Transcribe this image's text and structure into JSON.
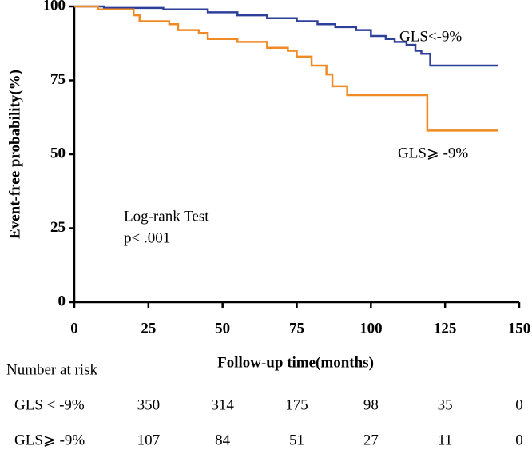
{
  "chart_data": {
    "type": "line",
    "drawstyle": "steps-post",
    "xlabel": "Follow-up time(months)",
    "ylabel": "Event-free probability(%)",
    "xlim": [
      0,
      150
    ],
    "xticks": [
      0,
      25,
      50,
      75,
      100,
      125,
      150
    ],
    "ylim": [
      0,
      100
    ],
    "yticks": [
      0,
      25,
      50,
      75,
      100
    ],
    "series": [
      {
        "name": "GLS<-9%",
        "color": "#2e3f9a",
        "x": [
          0,
          10,
          30,
          45,
          55,
          65,
          75,
          82,
          88,
          95,
          100,
          105,
          108,
          112,
          115,
          117,
          120,
          143
        ],
        "values": [
          100,
          99.5,
          99,
          98,
          97,
          96,
          95,
          94,
          93,
          92,
          90,
          89,
          88,
          87,
          85,
          84,
          80,
          80
        ]
      },
      {
        "name": "GLS⩾ -9%",
        "color": "#f08a24",
        "x": [
          0,
          8,
          20,
          22,
          32,
          35,
          42,
          45,
          55,
          65,
          72,
          75,
          80,
          85,
          87,
          92,
          119,
          143
        ],
        "values": [
          100,
          99,
          97,
          95,
          94,
          92,
          91,
          89,
          88,
          86,
          85,
          83,
          80,
          77,
          73,
          70,
          58,
          58
        ]
      }
    ],
    "annotations": [
      "Log-rank Test",
      "p< .001"
    ],
    "risk_table": {
      "title": "Number at risk",
      "rows": [
        {
          "label": "GLS < -9%",
          "values": [
            350,
            314,
            175,
            98,
            35,
            0
          ]
        },
        {
          "label": "GLS⩾ -9%",
          "values": [
            107,
            84,
            51,
            27,
            11,
            0
          ]
        }
      ]
    }
  }
}
